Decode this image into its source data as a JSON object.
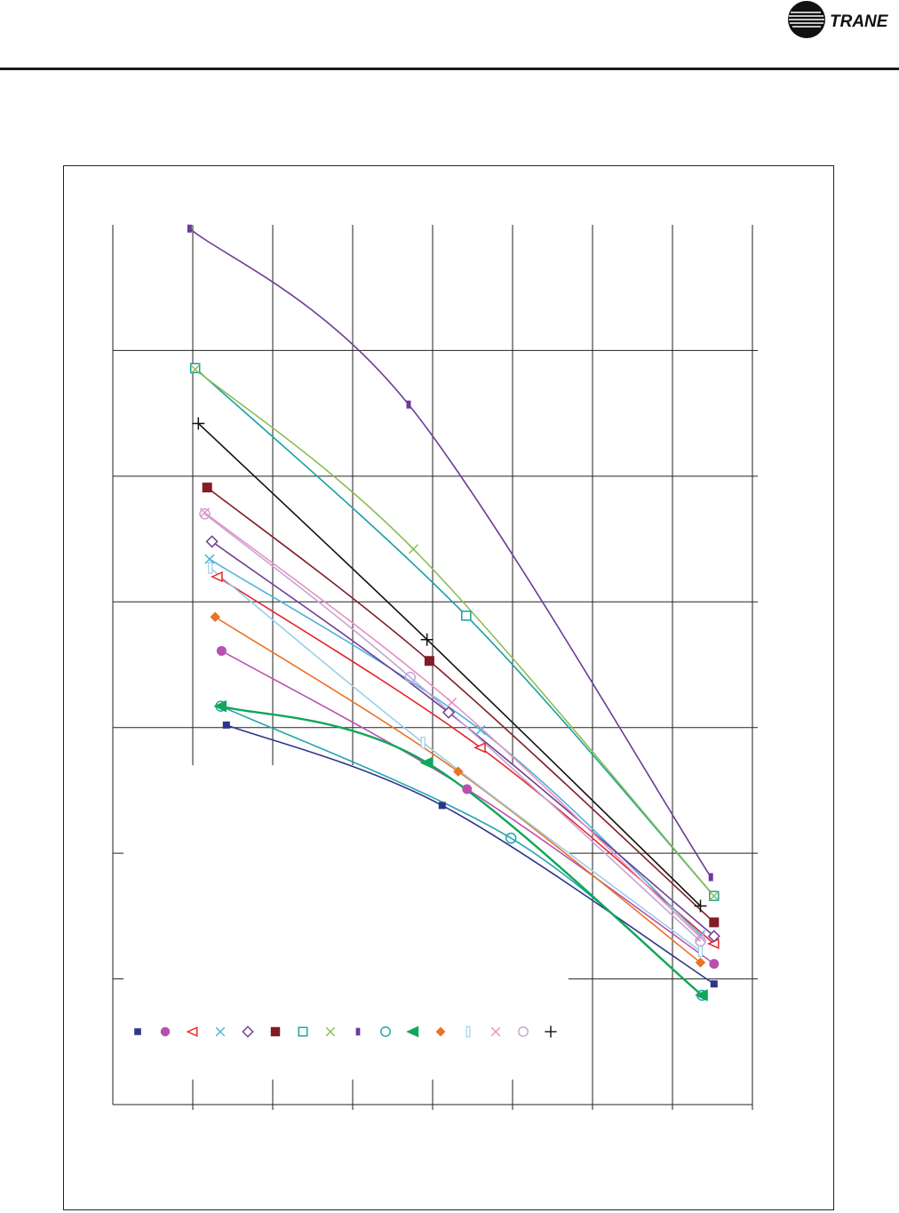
{
  "header": {
    "logo_text": "TRANE",
    "logo_icon": "trane-circle-logo-icon",
    "rule_color": "#1a1a1a"
  },
  "chart_data": {
    "type": "scatter",
    "title": "",
    "xlabel": "",
    "ylabel": "",
    "x_domain": [
      0,
      8
    ],
    "y_domain": [
      0,
      7
    ],
    "grid": true,
    "legend_position": "bottom-left",
    "series": [
      {
        "color": "#2e3589",
        "marker": "square-small",
        "points": [
          [
            1.42,
            3.02
          ],
          [
            4.12,
            2.38
          ],
          [
            7.52,
            0.96
          ]
        ]
      },
      {
        "color": "#b851ae",
        "marker": "circle-filled",
        "points": [
          [
            1.36,
            3.61
          ],
          [
            4.43,
            2.51
          ],
          [
            7.52,
            1.12
          ]
        ]
      },
      {
        "color": "#e8242b",
        "marker": "triangle-left-open",
        "points": [
          [
            1.31,
            4.2
          ],
          [
            4.6,
            2.84
          ],
          [
            7.52,
            1.28
          ]
        ]
      },
      {
        "color": "#4db2db",
        "marker": "x-mark",
        "points": [
          [
            1.21,
            4.34
          ],
          [
            4.6,
            2.98
          ],
          [
            7.35,
            1.35
          ]
        ]
      },
      {
        "color": "#6e3c91",
        "marker": "diamond-open",
        "points": [
          [
            1.24,
            4.48
          ],
          [
            4.2,
            3.12
          ],
          [
            7.52,
            1.34
          ]
        ]
      },
      {
        "color": "#821d25",
        "marker": "square-filled",
        "points": [
          [
            1.18,
            4.91
          ],
          [
            3.96,
            3.53
          ],
          [
            7.52,
            1.45
          ]
        ]
      },
      {
        "color": "#1aa0a0",
        "marker": "square-open",
        "points": [
          [
            1.03,
            5.86
          ],
          [
            4.42,
            3.89
          ],
          [
            7.52,
            1.66
          ]
        ]
      },
      {
        "color": "#8cbd52",
        "marker": "x-mark",
        "points": [
          [
            1.03,
            5.85
          ],
          [
            3.76,
            4.42
          ],
          [
            7.52,
            1.66
          ]
        ]
      },
      {
        "color": "#6c3b9a",
        "marker": "bar-small",
        "points": [
          [
            0.96,
            6.97
          ],
          [
            3.7,
            5.57
          ],
          [
            7.48,
            1.81
          ]
        ]
      },
      {
        "color": "#23a6ad",
        "marker": "circle-open",
        "points": [
          [
            1.35,
            3.17
          ],
          [
            4.98,
            2.12
          ],
          [
            7.37,
            0.87
          ]
        ]
      },
      {
        "color": "#11a65a",
        "marker": "triangle-left-filled",
        "points": [
          [
            1.35,
            3.17
          ],
          [
            3.93,
            2.72
          ],
          [
            7.37,
            0.87
          ]
        ]
      },
      {
        "color": "#ea7226",
        "marker": "diamond-filled",
        "points": [
          [
            1.28,
            3.88
          ],
          [
            4.32,
            2.65
          ],
          [
            7.35,
            1.13
          ]
        ]
      },
      {
        "color": "#9bcfe7",
        "marker": "bar-open",
        "points": [
          [
            1.22,
            4.27
          ],
          [
            3.88,
            2.88
          ],
          [
            7.35,
            1.22
          ]
        ]
      },
      {
        "color": "#e991c0",
        "marker": "x-mark",
        "points": [
          [
            1.15,
            4.71
          ],
          [
            4.24,
            3.2
          ],
          [
            7.35,
            1.33
          ]
        ]
      },
      {
        "color": "#c4a6d6",
        "marker": "circle-open",
        "points": [
          [
            1.15,
            4.7
          ],
          [
            3.72,
            3.4
          ],
          [
            7.35,
            1.3
          ]
        ]
      },
      {
        "color": "#111111",
        "marker": "plus",
        "points": [
          [
            1.07,
            5.42
          ],
          [
            3.93,
            3.7
          ],
          [
            7.35,
            1.58
          ]
        ]
      }
    ]
  }
}
